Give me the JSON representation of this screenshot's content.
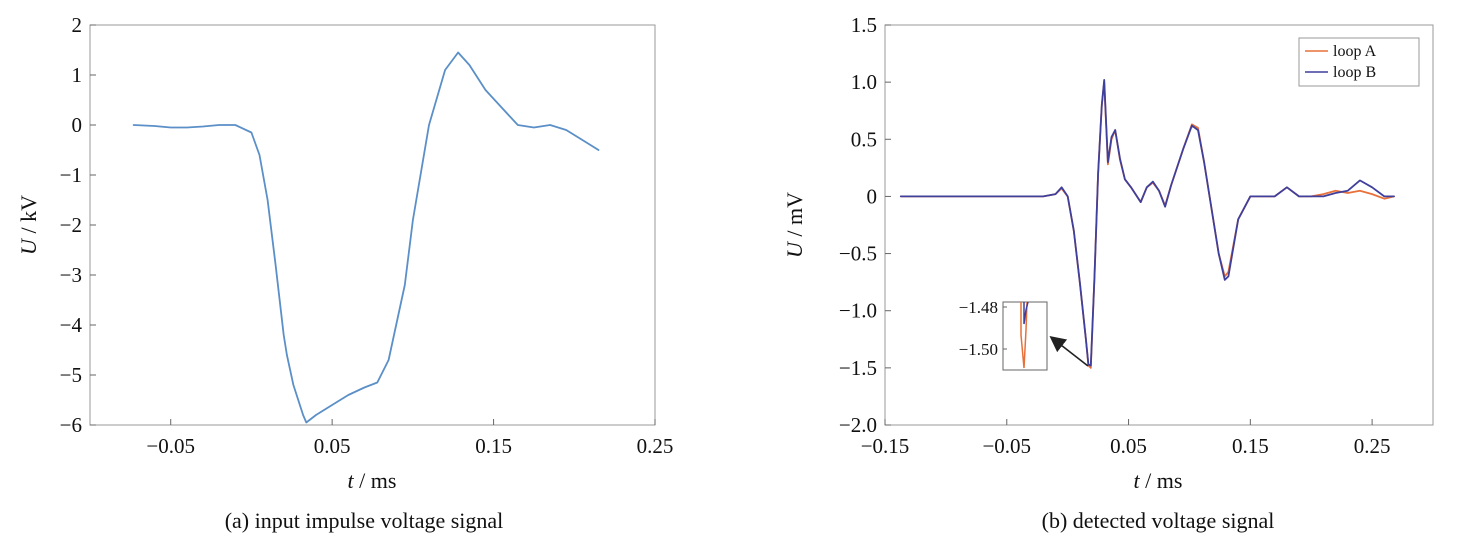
{
  "chart_data": [
    {
      "type": "line",
      "caption": "(a) input impulse voltage signal",
      "xlabel_var": "t",
      "xlabel_unit": " / ms",
      "ylabel_var": "U",
      "ylabel_unit": " / kV",
      "xlim": [
        -0.1,
        0.25
      ],
      "ylim": [
        -6,
        2
      ],
      "xticks": [
        -0.05,
        0.05,
        0.15,
        0.25
      ],
      "xtick_labels": [
        "−0.05",
        "0.05",
        "0.15",
        "0.25"
      ],
      "yticks": [
        -6,
        -5,
        -4,
        -3,
        -2,
        -1,
        0,
        1,
        2
      ],
      "ytick_labels": [
        "−6",
        "−5",
        "−4",
        "−3",
        "−2",
        "−1",
        "0",
        "1",
        "2"
      ],
      "grid": false,
      "series": [
        {
          "color": "#5b8fc7",
          "x": [
            -0.073,
            -0.06,
            -0.05,
            -0.04,
            -0.03,
            -0.02,
            -0.01,
            0.0,
            0.005,
            0.01,
            0.015,
            0.02,
            0.022,
            0.026,
            0.032,
            0.034,
            0.04,
            0.05,
            0.06,
            0.07,
            0.078,
            0.085,
            0.095,
            0.1,
            0.11,
            0.12,
            0.128,
            0.135,
            0.145,
            0.155,
            0.165,
            0.175,
            0.185,
            0.195,
            0.205,
            0.215
          ],
          "y": [
            0.0,
            -0.02,
            -0.05,
            -0.05,
            -0.03,
            0.0,
            0.0,
            -0.15,
            -0.6,
            -1.5,
            -2.8,
            -4.2,
            -4.6,
            -5.2,
            -5.8,
            -5.95,
            -5.8,
            -5.6,
            -5.4,
            -5.25,
            -5.15,
            -4.7,
            -3.2,
            -1.9,
            0.0,
            1.1,
            1.45,
            1.2,
            0.7,
            0.35,
            0.0,
            -0.05,
            0.0,
            -0.1,
            -0.3,
            -0.5
          ]
        }
      ]
    },
    {
      "type": "line",
      "caption": "(b) detected voltage signal",
      "xlabel_var": "t",
      "xlabel_unit": " / ms",
      "ylabel_var": "U",
      "ylabel_unit": " / mV",
      "xlim": [
        -0.15,
        0.3
      ],
      "ylim": [
        -2.0,
        1.5
      ],
      "xticks": [
        -0.15,
        -0.05,
        0.05,
        0.15,
        0.25
      ],
      "xtick_labels": [
        "−0.15",
        "−0.05",
        "0.05",
        "0.15",
        "0.25"
      ],
      "yticks": [
        -2.0,
        -1.5,
        -1.0,
        -0.5,
        0.0,
        0.5,
        1.0,
        1.5
      ],
      "ytick_labels": [
        "−2.0",
        "−1.5",
        "−1.0",
        "−0.5",
        "0",
        "0.5",
        "1.0",
        "1.5"
      ],
      "grid": false,
      "legend": {
        "placement": "top-right"
      },
      "series": [
        {
          "name": "loop A",
          "color": "#e8703a",
          "x": [
            -0.137,
            -0.1,
            -0.06,
            -0.02,
            -0.01,
            -0.005,
            0.0,
            0.005,
            0.01,
            0.015,
            0.017,
            0.019,
            0.022,
            0.025,
            0.028,
            0.03,
            0.033,
            0.036,
            0.039,
            0.043,
            0.047,
            0.052,
            0.06,
            0.065,
            0.07,
            0.075,
            0.08,
            0.085,
            0.095,
            0.102,
            0.107,
            0.112,
            0.118,
            0.124,
            0.129,
            0.132,
            0.14,
            0.15,
            0.16,
            0.17,
            0.18,
            0.19,
            0.2,
            0.21,
            0.22,
            0.23,
            0.24,
            0.25,
            0.26,
            0.268
          ],
          "y": [
            0.0,
            0.0,
            0.0,
            0.0,
            0.02,
            0.07,
            0.0,
            -0.3,
            -0.75,
            -1.25,
            -1.48,
            -1.5,
            -0.7,
            0.2,
            0.8,
            1.0,
            0.28,
            0.5,
            0.58,
            0.32,
            0.15,
            0.08,
            -0.05,
            0.08,
            0.12,
            0.05,
            -0.08,
            0.1,
            0.42,
            0.63,
            0.6,
            0.3,
            -0.1,
            -0.5,
            -0.7,
            -0.66,
            -0.2,
            0.0,
            0.0,
            0.0,
            0.08,
            0.0,
            0.0,
            0.02,
            0.05,
            0.03,
            0.05,
            0.02,
            -0.02,
            0.0
          ]
        },
        {
          "name": "loop B",
          "color": "#3f3f9c",
          "x": [
            -0.137,
            -0.1,
            -0.06,
            -0.02,
            -0.01,
            -0.005,
            0.0,
            0.005,
            0.01,
            0.015,
            0.017,
            0.019,
            0.022,
            0.025,
            0.028,
            0.03,
            0.033,
            0.036,
            0.039,
            0.043,
            0.047,
            0.052,
            0.06,
            0.065,
            0.07,
            0.075,
            0.08,
            0.085,
            0.095,
            0.102,
            0.107,
            0.112,
            0.118,
            0.124,
            0.129,
            0.132,
            0.14,
            0.15,
            0.16,
            0.17,
            0.18,
            0.19,
            0.2,
            0.21,
            0.22,
            0.23,
            0.24,
            0.25,
            0.26,
            0.268
          ],
          "y": [
            0.0,
            0.0,
            0.0,
            0.0,
            0.02,
            0.08,
            0.0,
            -0.3,
            -0.75,
            -1.25,
            -1.47,
            -1.48,
            -0.7,
            0.2,
            0.8,
            1.02,
            0.3,
            0.52,
            0.58,
            0.33,
            0.15,
            0.08,
            -0.05,
            0.08,
            0.13,
            0.05,
            -0.09,
            0.1,
            0.42,
            0.62,
            0.58,
            0.3,
            -0.1,
            -0.5,
            -0.73,
            -0.7,
            -0.2,
            0.0,
            0.0,
            0.0,
            0.08,
            0.0,
            0.0,
            0.0,
            0.03,
            0.05,
            0.14,
            0.08,
            0.0,
            0.0
          ]
        }
      ],
      "inset": {
        "ytick_labels": [
          "−1.48",
          "−1.50"
        ]
      }
    }
  ]
}
